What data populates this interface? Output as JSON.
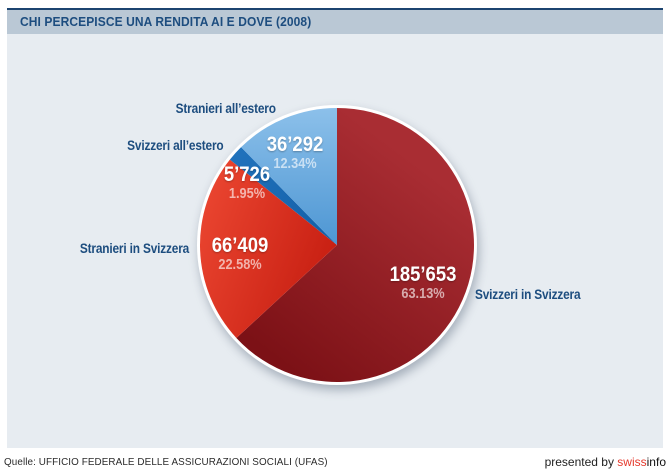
{
  "header": {
    "title": "CHI PERCEPISCE UNA RENDITA AI E DOVE (2008)"
  },
  "chart_data": {
    "type": "pie",
    "title": "CHI PERCEPISCE UNA RENDITA AI E DOVE (2008)",
    "year": "2008",
    "start_angle_deg": 0,
    "direction": "clockwise",
    "slices": [
      {
        "label": "Svizzeri in Svizzera",
        "value": 185653,
        "value_label": "185’653",
        "pct": 63.13,
        "pct_label": "63.13%",
        "color": "#7c1116",
        "color_light": "#a92d33"
      },
      {
        "label": "Stranieri in Svizzera",
        "value": 66409,
        "value_label": "66’409",
        "pct": 22.58,
        "pct_label": "22.58%",
        "color": "#c41b0f",
        "color_light": "#ea4530"
      },
      {
        "label": "Svizzeri all’estero",
        "value": 5726,
        "value_label": "5’726",
        "pct": 1.95,
        "pct_label": "1.95%",
        "color": "#125ea6",
        "color_light": "#2173bd"
      },
      {
        "label": "Stranieri all’estero",
        "value": 36292,
        "value_label": "36’292",
        "pct": 12.34,
        "pct_label": "12.34%",
        "color": "#4d96d3",
        "color_light": "#8cc0ea"
      }
    ]
  },
  "footer": {
    "source": "Quelle: UFFICIO FEDERALE DELLE ASSICURAZIONI SOCIALI (UFAS)",
    "presented_by": "presented by ",
    "brand_swiss": "swiss",
    "brand_info": "info"
  },
  "colors": {
    "header_bar": "#bac8d5",
    "header_border": "#1c4470",
    "title_text": "#1d4d7f",
    "body_bg": "#e7ecf1",
    "label_text": "#1d4d7f",
    "pct_text": "rgba(255,255,255,0.62)",
    "value_text": "#ffffff",
    "brand_red": "#e5392c",
    "pie_rim": "#ffffff"
  }
}
